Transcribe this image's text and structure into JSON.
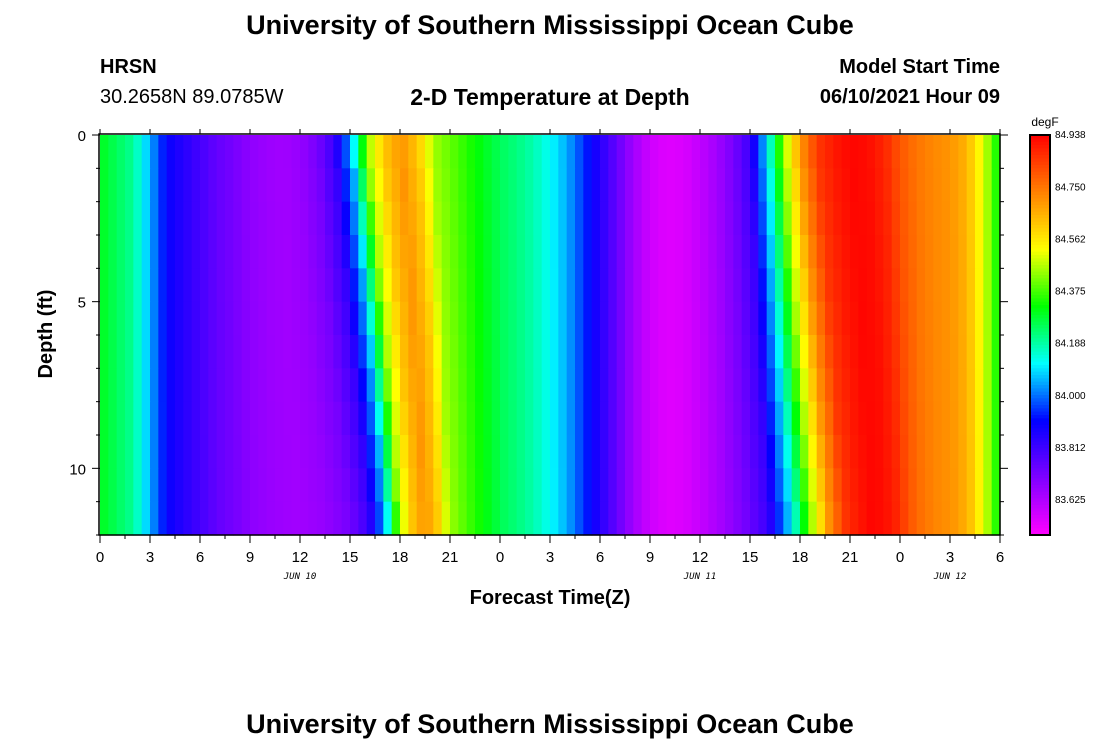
{
  "header": {
    "title_top": "University of Southern Mississippi Ocean Cube",
    "station_name": "HRSN",
    "station_coords": "30.2658N  89.0785W",
    "plot_title": "2-D Temperature at Depth",
    "model_start_label": "Model Start Time",
    "model_start_value": "06/10/2021 Hour 09",
    "title_bottom": "University of Southern Mississippi Ocean Cube"
  },
  "chart_data": {
    "type": "heatmap",
    "title": "2-D Temperature at Depth",
    "xlabel": "Forecast Time(Z)",
    "ylabel": "Depth (ft)",
    "x_tick_labels": [
      "0",
      "3",
      "6",
      "9",
      "12",
      "15",
      "18",
      "21",
      "0",
      "3",
      "6",
      "9",
      "12",
      "15",
      "18",
      "21",
      "0",
      "3",
      "6"
    ],
    "date_labels": [
      "JUN 10",
      "JUN 11",
      "JUN 12"
    ],
    "y_tick_labels": [
      "0",
      "5",
      "10"
    ],
    "ylim": [
      0,
      12
    ],
    "x_range_hours": [
      0,
      54
    ],
    "colorbar": {
      "unit": "degF",
      "range": [
        83.5,
        84.938
      ],
      "tick_labels": [
        "84.938",
        "84.750",
        "84.562",
        "84.375",
        "84.188",
        "84.000",
        "83.812",
        "83.625"
      ],
      "colors": [
        "#ff00ff",
        "#7f00ff",
        "#0000ff",
        "#00ffff",
        "#00ff00",
        "#ffff00",
        "#ff8000",
        "#ff0000"
      ]
    },
    "depth_levels_ft": [
      0,
      1,
      2,
      3,
      4,
      5,
      6,
      7,
      8,
      9,
      10,
      11,
      12
    ],
    "surface_profile_hours": [
      0,
      2,
      3,
      4,
      5,
      6,
      7,
      8,
      9,
      10,
      11,
      12,
      13,
      14,
      15,
      16,
      17,
      18,
      19,
      20,
      21,
      22,
      23,
      24,
      25,
      26,
      27,
      28,
      29,
      30,
      31,
      32,
      33,
      34,
      35,
      36,
      37,
      38,
      39,
      40,
      41,
      42,
      43,
      44,
      45,
      46,
      47,
      48,
      49,
      50,
      51,
      52,
      53,
      54
    ],
    "surface_profile_degF": [
      84.3,
      84.2,
      84.05,
      83.9,
      83.85,
      83.8,
      83.75,
      83.72,
      83.68,
      83.66,
      83.65,
      83.67,
      83.72,
      83.82,
      84.05,
      84.45,
      84.62,
      84.7,
      84.62,
      84.45,
      84.4,
      84.35,
      84.3,
      84.25,
      84.22,
      84.18,
      84.12,
      84.05,
      83.95,
      83.85,
      83.75,
      83.65,
      83.58,
      83.55,
      83.56,
      83.6,
      83.65,
      83.72,
      83.82,
      84.1,
      84.45,
      84.7,
      84.85,
      84.9,
      84.93,
      84.92,
      84.88,
      84.8,
      84.75,
      84.72,
      84.7,
      84.65,
      84.5,
      84.3
    ]
  }
}
